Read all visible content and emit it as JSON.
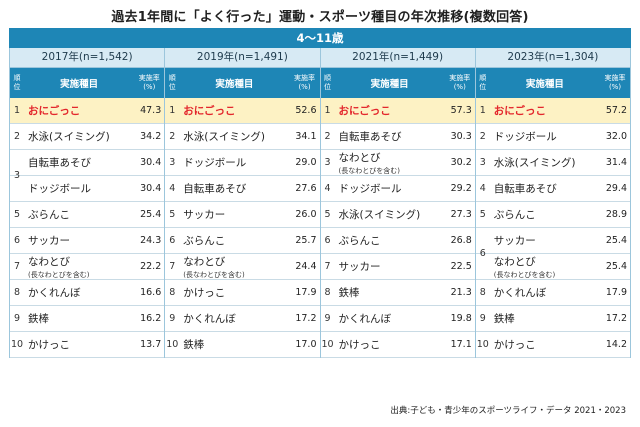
{
  "title": "過去1年間に「よく行った」運動・スポーツ種目の年次推移(複数回答)",
  "age_group": "4〜11歳",
  "header": {
    "rank_line1": "順",
    "rank_line2": "位",
    "sport": "実施種目",
    "rate_line1": "実施率",
    "rate_line2": "(%)"
  },
  "years": [
    {
      "label": "2017年(n=1,542)",
      "rows": [
        {
          "rank": "1",
          "sport": "おにごっこ",
          "rate": "47.3",
          "highlight": true
        },
        {
          "rank": "2",
          "sport": "水泳(スイミング)",
          "rate": "34.2"
        },
        {
          "rank": "3",
          "sport": "自転車あそび",
          "rate": "30.4",
          "rank_group_start": true,
          "span": 2
        },
        {
          "rank": "",
          "sport": "ドッジボール",
          "rate": "30.4"
        },
        {
          "rank": "5",
          "sport": "ぶらんこ",
          "rate": "25.4"
        },
        {
          "rank": "6",
          "sport": "サッカー",
          "rate": "24.3"
        },
        {
          "rank": "7",
          "sport": "なわとび",
          "sub": "(長なわとびを含む)",
          "rate": "22.2"
        },
        {
          "rank": "8",
          "sport": "かくれんぼ",
          "rate": "16.6"
        },
        {
          "rank": "9",
          "sport": "鉄棒",
          "rate": "16.2"
        },
        {
          "rank": "10",
          "sport": "かけっこ",
          "rate": "13.7"
        }
      ]
    },
    {
      "label": "2019年(n=1,491)",
      "rows": [
        {
          "rank": "1",
          "sport": "おにごっこ",
          "rate": "52.6",
          "highlight": true
        },
        {
          "rank": "2",
          "sport": "水泳(スイミング)",
          "rate": "34.1"
        },
        {
          "rank": "3",
          "sport": "ドッジボール",
          "rate": "29.0"
        },
        {
          "rank": "4",
          "sport": "自転車あそび",
          "rate": "27.6"
        },
        {
          "rank": "5",
          "sport": "サッカー",
          "rate": "26.0"
        },
        {
          "rank": "6",
          "sport": "ぶらんこ",
          "rate": "25.7"
        },
        {
          "rank": "7",
          "sport": "なわとび",
          "sub": "(長なわとびを含む)",
          "rate": "24.4"
        },
        {
          "rank": "8",
          "sport": "かけっこ",
          "rate": "17.9"
        },
        {
          "rank": "9",
          "sport": "かくれんぼ",
          "rate": "17.2"
        },
        {
          "rank": "10",
          "sport": "鉄棒",
          "rate": "17.0"
        }
      ]
    },
    {
      "label": "2021年(n=1,449)",
      "rows": [
        {
          "rank": "1",
          "sport": "おにごっこ",
          "rate": "57.3",
          "highlight": true
        },
        {
          "rank": "2",
          "sport": "自転車あそび",
          "rate": "30.3"
        },
        {
          "rank": "3",
          "sport": "なわとび",
          "sub": "(長なわとびを含む)",
          "rate": "30.2"
        },
        {
          "rank": "4",
          "sport": "ドッジボール",
          "rate": "29.2"
        },
        {
          "rank": "5",
          "sport": "水泳(スイミング)",
          "rate": "27.3"
        },
        {
          "rank": "6",
          "sport": "ぶらんこ",
          "rate": "26.8"
        },
        {
          "rank": "7",
          "sport": "サッカー",
          "rate": "22.5"
        },
        {
          "rank": "8",
          "sport": "鉄棒",
          "rate": "21.3"
        },
        {
          "rank": "9",
          "sport": "かくれんぼ",
          "rate": "19.8"
        },
        {
          "rank": "10",
          "sport": "かけっこ",
          "rate": "17.1"
        }
      ]
    },
    {
      "label": "2023年(n=1,304)",
      "rows": [
        {
          "rank": "1",
          "sport": "おにごっこ",
          "rate": "57.2",
          "highlight": true
        },
        {
          "rank": "2",
          "sport": "ドッジボール",
          "rate": "32.0"
        },
        {
          "rank": "3",
          "sport": "水泳(スイミング)",
          "rate": "31.4"
        },
        {
          "rank": "4",
          "sport": "自転車あそび",
          "rate": "29.4"
        },
        {
          "rank": "5",
          "sport": "ぶらんこ",
          "rate": "28.9"
        },
        {
          "rank": "6",
          "sport": "サッカー",
          "rate": "25.4",
          "rank_group_start": true,
          "span": 2
        },
        {
          "rank": "",
          "sport": "なわとび",
          "sub": "(長なわとびを含む)",
          "rate": "25.4"
        },
        {
          "rank": "8",
          "sport": "かくれんぼ",
          "rate": "17.9"
        },
        {
          "rank": "9",
          "sport": "鉄棒",
          "rate": "17.2"
        },
        {
          "rank": "10",
          "sport": "かけっこ",
          "rate": "14.2"
        }
      ]
    }
  ],
  "source": "出典:子ども・青少年のスポーツライフ・データ 2021・2023",
  "colors": {
    "header_blue": "#1e86b6",
    "year_bg": "#d7eaf4",
    "highlight_bg": "#fdf2c4",
    "highlight_text": "#e3262c"
  }
}
